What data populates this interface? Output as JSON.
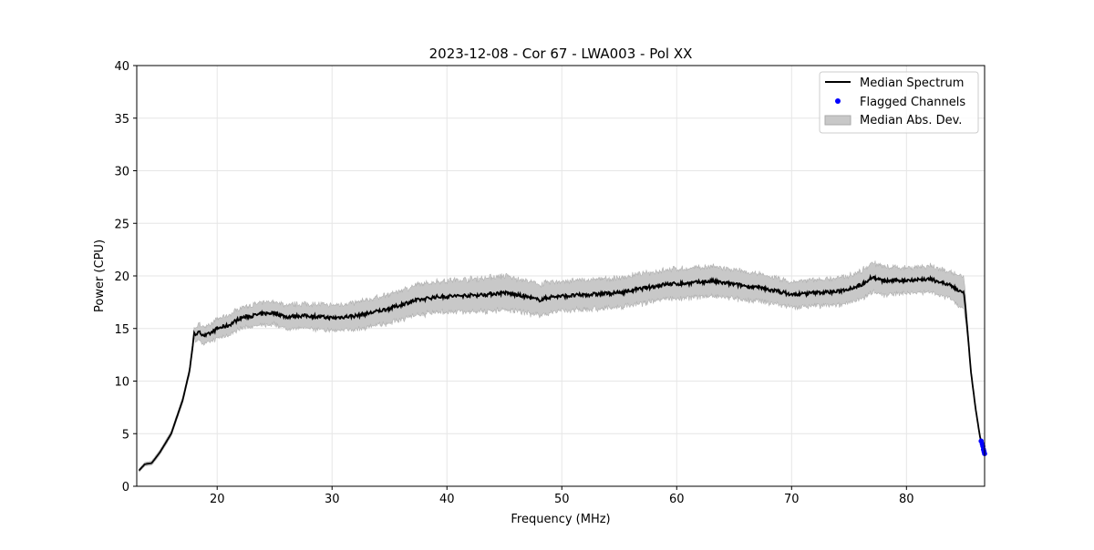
{
  "chart_data": {
    "type": "line",
    "title": "2023-12-08 - Cor 67 - LWA003 - Pol XX",
    "xlabel": "Frequency (MHz)",
    "ylabel": "Power (CPU)",
    "xlim": [
      13.0,
      86.8
    ],
    "ylim": [
      0,
      40
    ],
    "xticks": [
      20,
      30,
      40,
      50,
      60,
      70,
      80
    ],
    "yticks": [
      0,
      5,
      10,
      15,
      20,
      25,
      30,
      35,
      40
    ],
    "grid": true,
    "legend": {
      "placement": "top-right",
      "entries": [
        "Median Spectrum",
        "Flagged Channels",
        "Median Abs. Dev."
      ]
    },
    "colors": {
      "median": "#000000",
      "flagged": "#0000ff",
      "mad": "#c8c8c8"
    },
    "median_spectrum": {
      "x": [
        13.2,
        13.7,
        14.3,
        15,
        16,
        17,
        17.6,
        18,
        18.5,
        19,
        19.5,
        20,
        21,
        22,
        23,
        24,
        25,
        26,
        27,
        28,
        29,
        30,
        31,
        32,
        33,
        35,
        37,
        39,
        41,
        43,
        45,
        47,
        48,
        49,
        52,
        55,
        57,
        59,
        61,
        63,
        65,
        67,
        69,
        70,
        72,
        74,
        76,
        77,
        78,
        80,
        82,
        83,
        84,
        85,
        85.3,
        85.6,
        86,
        86.4,
        86.8
      ],
      "y": [
        1.5,
        2.1,
        2.2,
        3.2,
        5,
        8.2,
        11,
        14.5,
        14.6,
        14.3,
        14.6,
        15,
        15.3,
        16,
        16.2,
        16.4,
        16.5,
        16.1,
        16.2,
        16.2,
        16.1,
        16.0,
        16.1,
        16.2,
        16.4,
        16.9,
        17.6,
        18.0,
        18.1,
        18.2,
        18.4,
        18.0,
        17.7,
        18.0,
        18.2,
        18.4,
        18.8,
        19.2,
        19.3,
        19.5,
        19.2,
        18.9,
        18.5,
        18.2,
        18.4,
        18.5,
        19.1,
        19.9,
        19.5,
        19.6,
        19.7,
        19.4,
        19.0,
        18.3,
        15,
        11,
        7.5,
        4.7,
        3.1
      ]
    },
    "median_abs_dev": {
      "x": [
        13.2,
        17.5,
        18.5,
        22,
        30,
        40,
        45,
        50,
        60,
        63,
        70,
        76,
        77,
        80,
        84,
        85,
        85.5,
        86.8
      ],
      "y": [
        0.15,
        0.3,
        0.8,
        1.0,
        1.2,
        1.5,
        1.6,
        1.4,
        1.4,
        1.4,
        1.2,
        1.3,
        1.4,
        1.2,
        1.3,
        1.5,
        0.3,
        0.1
      ]
    },
    "flagged_channels": {
      "x": [
        86.5,
        86.6,
        86.65,
        86.7,
        86.75,
        86.8
      ],
      "y": [
        4.3,
        4.0,
        3.8,
        3.5,
        3.3,
        3.1
      ]
    }
  }
}
